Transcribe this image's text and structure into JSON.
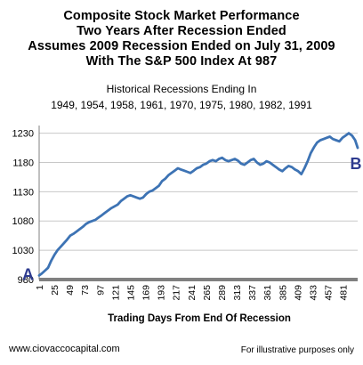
{
  "header": {
    "title_lines": [
      "Composite Stock Market Performance",
      "Two Years After Recession Ended",
      "Assumes 2009 Recession Ended on July 31, 2009",
      "With The S&P 500 Index At 987"
    ],
    "subtitle_lines": [
      "Historical Recessions Ending In",
      "1949, 1954, 1958, 1961, 1970, 1975, 1980, 1982, 1991"
    ]
  },
  "footer": {
    "website": "www.ciovaccocapital.com",
    "note": "For illustrative purposes only"
  },
  "colors": {
    "line": "#3d73b4",
    "axis": "#808080",
    "grid": "#c8c8c8",
    "marker_label": "#2e3b8f"
  },
  "chart_data": {
    "type": "line",
    "xlabel": "Trading Days From End Of Recession",
    "ylabel": "",
    "xlim": [
      1,
      504
    ],
    "ylim": [
      980,
      1240
    ],
    "y_ticks": [
      980,
      1030,
      1080,
      1130,
      1180,
      1230
    ],
    "x_ticks": [
      1,
      25,
      49,
      73,
      97,
      121,
      145,
      169,
      193,
      217,
      241,
      265,
      289,
      313,
      337,
      361,
      385,
      409,
      433,
      457,
      481
    ],
    "grid": "horizontal",
    "legend": "none",
    "annotations": [
      {
        "text": "A",
        "x": 1,
        "y": 987,
        "position": "left-of-start"
      },
      {
        "text": "B",
        "x": 504,
        "y": 1205,
        "position": "right-below-end"
      }
    ],
    "series": [
      {
        "x": [
          1,
          5,
          10,
          15,
          20,
          25,
          30,
          35,
          40,
          45,
          50,
          55,
          60,
          65,
          70,
          75,
          80,
          85,
          90,
          95,
          100,
          105,
          110,
          115,
          120,
          125,
          130,
          135,
          140,
          145,
          150,
          155,
          160,
          165,
          170,
          175,
          180,
          185,
          190,
          195,
          200,
          205,
          210,
          215,
          220,
          225,
          230,
          235,
          240,
          245,
          250,
          255,
          260,
          265,
          270,
          275,
          280,
          285,
          290,
          295,
          300,
          305,
          310,
          315,
          320,
          325,
          330,
          335,
          340,
          345,
          350,
          355,
          360,
          365,
          370,
          375,
          380,
          385,
          390,
          395,
          400,
          405,
          410,
          415,
          420,
          425,
          430,
          435,
          440,
          445,
          450,
          455,
          460,
          465,
          470,
          475,
          480,
          485,
          490,
          495,
          500,
          504
        ],
        "values": [
          987,
          990,
          995,
          1000,
          1012,
          1022,
          1030,
          1036,
          1042,
          1048,
          1055,
          1058,
          1062,
          1066,
          1070,
          1075,
          1078,
          1080,
          1082,
          1086,
          1090,
          1094,
          1098,
          1102,
          1105,
          1108,
          1114,
          1118,
          1122,
          1124,
          1122,
          1120,
          1118,
          1120,
          1126,
          1130,
          1132,
          1136,
          1140,
          1148,
          1152,
          1158,
          1162,
          1166,
          1170,
          1168,
          1166,
          1164,
          1162,
          1166,
          1170,
          1172,
          1176,
          1178,
          1182,
          1184,
          1182,
          1186,
          1188,
          1184,
          1182,
          1184,
          1186,
          1183,
          1178,
          1176,
          1180,
          1184,
          1186,
          1180,
          1176,
          1178,
          1182,
          1180,
          1176,
          1172,
          1168,
          1165,
          1170,
          1174,
          1172,
          1168,
          1165,
          1160,
          1170,
          1182,
          1196,
          1206,
          1214,
          1218,
          1220,
          1222,
          1224,
          1220,
          1218,
          1216,
          1222,
          1226,
          1230,
          1226,
          1218,
          1205
        ]
      }
    ]
  }
}
